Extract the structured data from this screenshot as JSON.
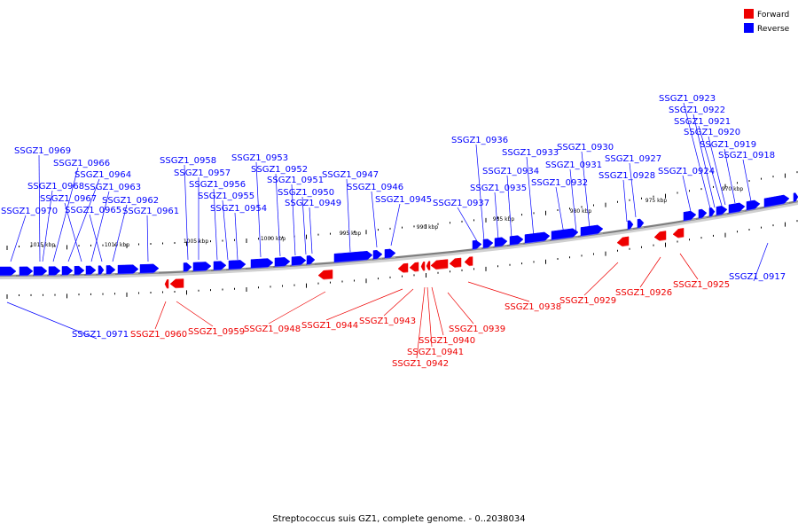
{
  "caption": "Streptococcus suis GZ1, complete genome. - 0..2038034",
  "legend": [
    {
      "label": "Forward",
      "color": "#ee0000"
    },
    {
      "label": "Reverse",
      "color": "#0000ff"
    }
  ],
  "colors": {
    "forward": "#ee0000",
    "reverse": "#0000ff",
    "backbone": "#7f7f7f"
  },
  "tick_labels": [
    "1015 kbp",
    "1010 kbp",
    "1005 kbp",
    "1000 kbp",
    "995 kbp",
    "990 kbp",
    "985 kbp",
    "980 kbp",
    "975 kbp",
    "970 kbp"
  ],
  "reverse_genes": [
    "SSGZ1_0969",
    "SSGZ1_0966",
    "SSGZ1_0964",
    "SSGZ1_0968",
    "SSGZ1_0963",
    "SSGZ1_0967",
    "SSGZ1_0962",
    "SSGZ1_0965",
    "SSGZ1_0970",
    "SSGZ1_0961",
    "SSGZ1_0958",
    "SSGZ1_0957",
    "SSGZ1_0956",
    "SSGZ1_0955",
    "SSGZ1_0954",
    "SSGZ1_0953",
    "SSGZ1_0952",
    "SSGZ1_0951",
    "SSGZ1_0950",
    "SSGZ1_0949",
    "SSGZ1_0947",
    "SSGZ1_0946",
    "SSGZ1_0945",
    "SSGZ1_0936",
    "SSGZ1_0933",
    "SSGZ1_0934",
    "SSGZ1_0935",
    "SSGZ1_0937",
    "SSGZ1_0930",
    "SSGZ1_0931",
    "SSGZ1_0932",
    "SSGZ1_0927",
    "SSGZ1_0928",
    "SSGZ1_0924",
    "SSGZ1_0923",
    "SSGZ1_0922",
    "SSGZ1_0921",
    "SSGZ1_0920",
    "SSGZ1_0919",
    "SSGZ1_0918",
    "SSGZ1_0917",
    "SSGZ1_0971"
  ],
  "forward_genes": [
    "SSGZ1_0960",
    "SSGZ1_0959",
    "SSGZ1_0948",
    "SSGZ1_0944",
    "SSGZ1_0943",
    "SSGZ1_0939",
    "SSGZ1_0940",
    "SSGZ1_0941",
    "SSGZ1_0942",
    "SSGZ1_0938",
    "SSGZ1_0929",
    "SSGZ1_0926",
    "SSGZ1_0925"
  ]
}
